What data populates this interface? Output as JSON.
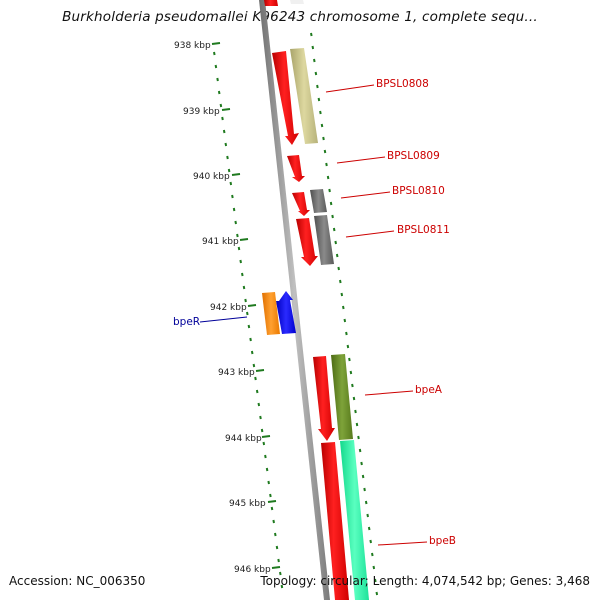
{
  "title": "Burkholderia pseudomallei K96243 chromosome 1, complete sequ...",
  "scale": {
    "ticks": [
      "938 kbp",
      "939 kbp",
      "940 kbp",
      "941 kbp",
      "942 kbp",
      "943 kbp",
      "944 kbp",
      "945 kbp",
      "946 kbp"
    ]
  },
  "genes": [
    {
      "label": "BPSL0808",
      "color": "#cc0000"
    },
    {
      "label": "BPSL0809",
      "color": "#cc0000"
    },
    {
      "label": "BPSL0810",
      "color": "#cc0000"
    },
    {
      "label": "BPSL0811",
      "color": "#cc0000"
    },
    {
      "label": "bpeR",
      "color": "#000099"
    },
    {
      "label": "bpeA",
      "color": "#cc0000"
    },
    {
      "label": "bpeB",
      "color": "#cc0000"
    }
  ],
  "colors": {
    "cds_red": "#ff1a1a",
    "backbone": "#8c8c8c",
    "tick_green": "#1f7a1f",
    "cog_tan": "#c9c48a",
    "cog_gray": "#6e6e6e",
    "cog_orange": "#ff8c00",
    "cog_blue": "#0000ff",
    "cog_olive": "#6b8e23",
    "cog_aqua": "#2effa8"
  },
  "footer": {
    "accession": "Accession: NC_006350",
    "topology": "Topology: circular; Length: 4,074,542 bp; Genes: 3,468"
  }
}
